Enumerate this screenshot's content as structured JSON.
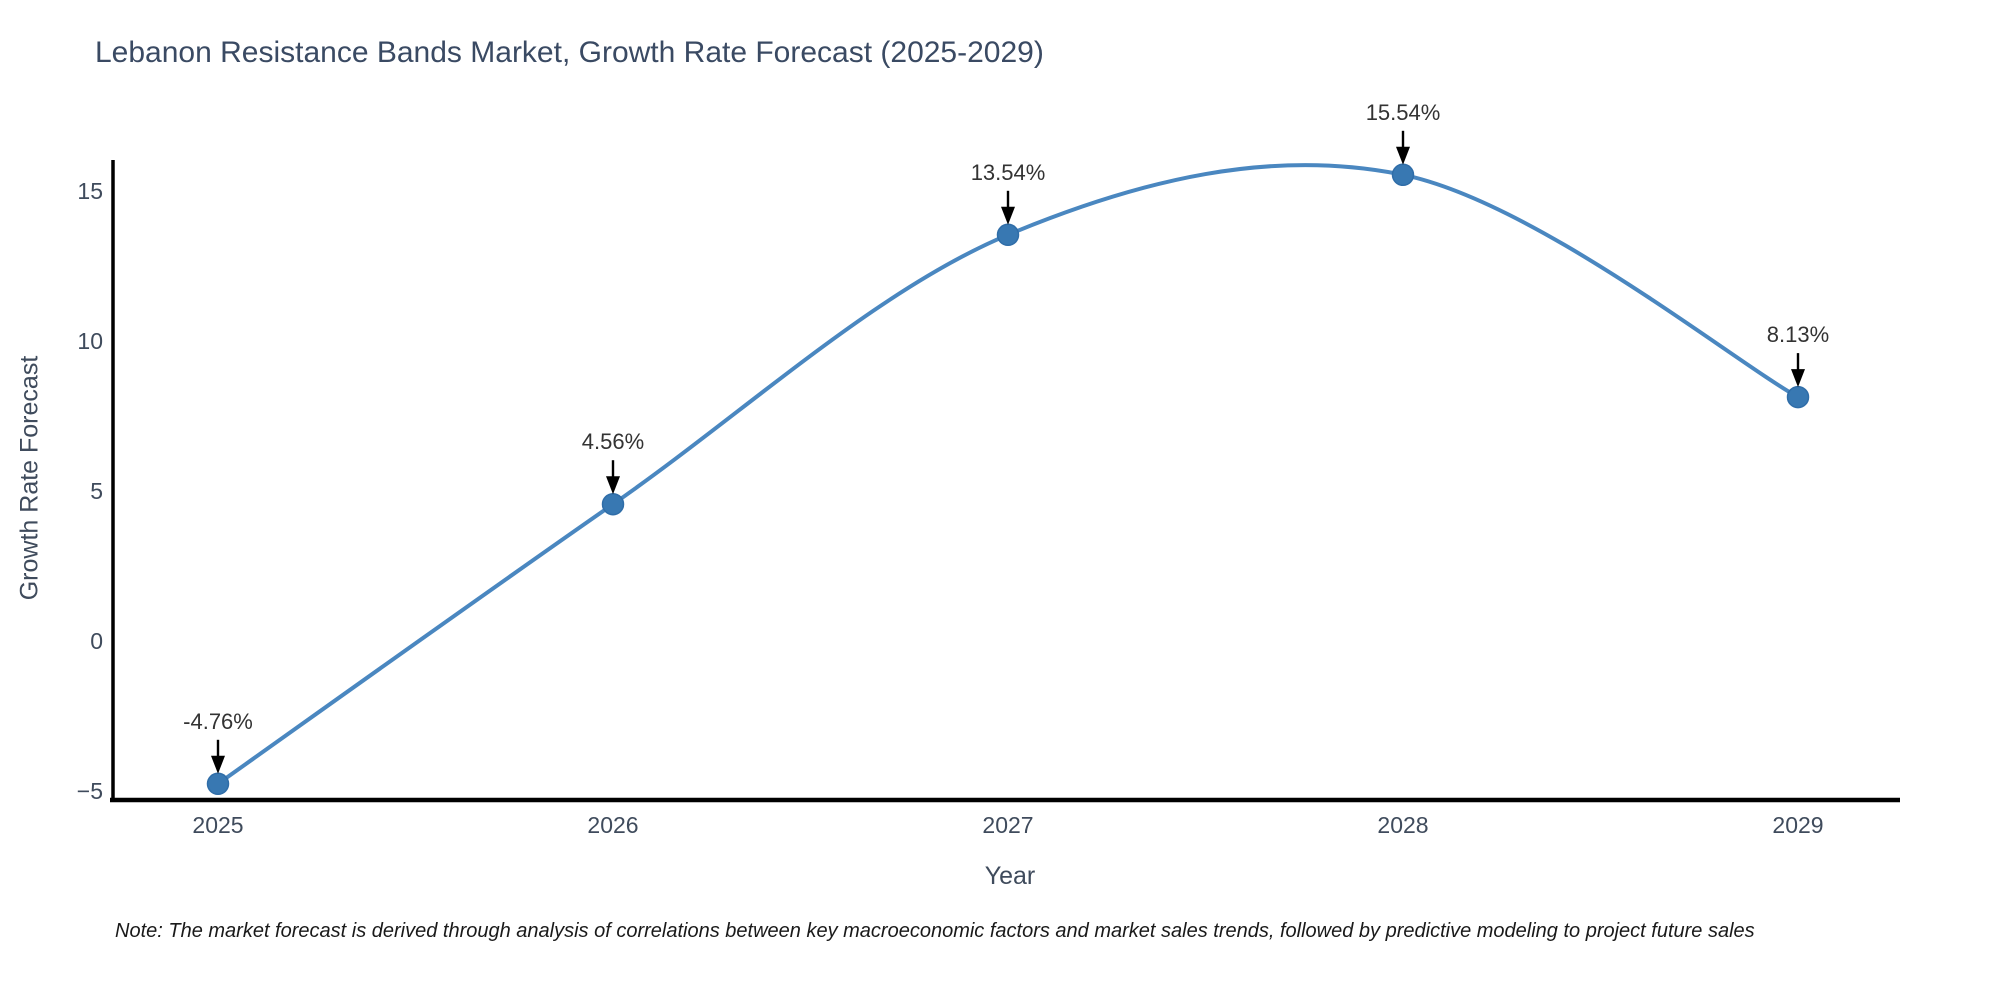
{
  "page": {
    "background": "#ffffff"
  },
  "chart_data": {
    "type": "line",
    "title": "Lebanon Resistance Bands Market, Growth Rate Forecast (2025-2029)",
    "xlabel": "Year",
    "ylabel": "Growth Rate Forecast",
    "x": [
      2025,
      2026,
      2027,
      2028,
      2029
    ],
    "series": [
      {
        "name": "Growth Rate Forecast",
        "values": [
          -4.76,
          4.56,
          13.54,
          15.54,
          8.13
        ]
      }
    ],
    "point_labels": [
      "-4.76%",
      "4.56%",
      "13.54%",
      "15.54%",
      "8.13%"
    ],
    "yticks": [
      15,
      10,
      5,
      0,
      -5
    ],
    "ytick_labels": [
      "15",
      "10",
      "5",
      "0",
      "−5"
    ],
    "ylim": [
      -5.3,
      16.4
    ],
    "xtick_labels": [
      "2025",
      "2026",
      "2027",
      "2028",
      "2029"
    ],
    "grid": false,
    "legend": "none",
    "curve_style": "smooth-spline",
    "annotation_arrows": "black-down-arrows",
    "colors": {
      "line": "#4a87c0",
      "marker": "#3878b2",
      "marker_edge": "#2f6da8",
      "axis": "#000000",
      "tick_label": "#3f4b5c",
      "title": "#3a4a63",
      "annotation": "#333333",
      "note": "#1a1a1a"
    }
  },
  "note": {
    "text": "Note: The market forecast is derived through analysis of correlations between key macroeconomic factors and market sales trends, followed by predictive modeling to project future sales"
  }
}
